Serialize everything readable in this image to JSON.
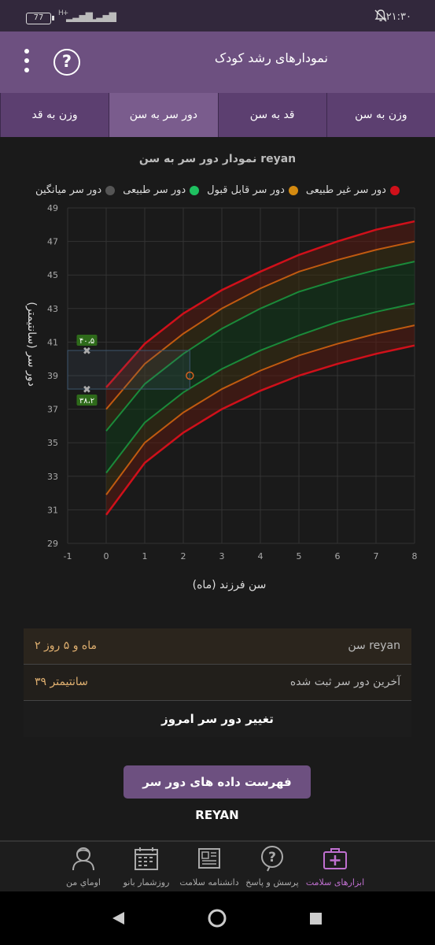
{
  "status_bar": {
    "time": "۲۱:۳۰",
    "battery": "77",
    "network": "H+"
  },
  "app_bar": {
    "title": "نمودارهای رشد کودک",
    "help_icon": "help-icon",
    "menu_icon": "more-vert-icon"
  },
  "tabs": [
    {
      "label": "وزن به سن",
      "active": false
    },
    {
      "label": "قد به سن",
      "active": false
    },
    {
      "label": "دور سر به سن",
      "active": true
    },
    {
      "label": "وزن به قد",
      "active": false
    }
  ],
  "chart_title": "نمودار دور سر به سن reyan",
  "legend": [
    {
      "label": "دور سر غیر طبیعی",
      "color": "#d0101a"
    },
    {
      "label": "دور سر قابل قبول",
      "color": "#d48a10"
    },
    {
      "label": "دور سر طبیعی",
      "color": "#1ec060"
    },
    {
      "label": "دور سر میانگین",
      "color": "#555555"
    }
  ],
  "chart_data": {
    "type": "line",
    "xlabel": "سن فرزند (ماه)",
    "ylabel": "دور سر (سانتیمتر)",
    "xlim": [
      -1,
      8
    ],
    "ylim": [
      29,
      49
    ],
    "x_ticks": [
      "-1",
      "0",
      "1",
      "2",
      "3",
      "4",
      "5",
      "6",
      "7",
      "8"
    ],
    "y_ticks": [
      "29",
      "31",
      "33",
      "35",
      "37",
      "39",
      "41",
      "43",
      "45",
      "47",
      "49"
    ],
    "x": [
      0,
      1,
      2,
      3,
      4,
      5,
      6,
      7,
      8
    ],
    "series": [
      {
        "name": "دور سر غیر طبیعی",
        "color": "#d0101a",
        "values": [
          30.7,
          33.8,
          35.6,
          37.0,
          38.1,
          39.0,
          39.7,
          40.3,
          40.8
        ]
      },
      {
        "name": "دور سر قابل قبول",
        "color": "#c05a10",
        "values": [
          31.9,
          35.0,
          36.8,
          38.2,
          39.3,
          40.2,
          40.9,
          41.5,
          42.0
        ]
      },
      {
        "name": "دور سر طبیعی",
        "color": "#1a8a3a",
        "values": [
          33.2,
          36.2,
          38.0,
          39.4,
          40.5,
          41.4,
          42.2,
          42.8,
          43.3
        ]
      },
      {
        "name": "دور سر طبیعی",
        "color": "#1a8a3a",
        "values": [
          35.7,
          38.5,
          40.3,
          41.8,
          43.0,
          44.0,
          44.7,
          45.3,
          45.8
        ]
      },
      {
        "name": "دور سر قابل قبول",
        "color": "#c05a10",
        "values": [
          37.0,
          39.7,
          41.5,
          43.0,
          44.2,
          45.2,
          45.9,
          46.5,
          47.0
        ]
      },
      {
        "name": "دور سر غیر طبیعی",
        "color": "#d0101a",
        "values": [
          38.3,
          40.9,
          42.7,
          44.1,
          45.2,
          46.2,
          47.0,
          47.7,
          48.2
        ]
      }
    ],
    "measurement": {
      "x": 2.17,
      "y": 39.0
    },
    "range_box": {
      "x": [
        -1,
        2.17
      ],
      "y": [
        38.2,
        40.5
      ]
    },
    "range_labels": [
      {
        "text": "۴۰،۵",
        "x": -0.5,
        "y": 40.5
      },
      {
        "text": "۳۸،۲",
        "x": -0.5,
        "y": 38.2
      }
    ]
  },
  "info": {
    "age_label": "سن reyan",
    "age_value": "۲ ماه و ۵ روز",
    "last_label": "آخرین دور سر ثبت شده",
    "last_value": "۳۹ سانتیمتر",
    "change_button": "تغییر دور سر امروز"
  },
  "list_button": "فهرست داده های دور سر REYAN",
  "bottom_nav": [
    {
      "label": "ابزارهای سلامت",
      "icon": "medical-kit-icon",
      "active": true
    },
    {
      "label": "پرسش و پاسخ",
      "icon": "question-icon",
      "active": false
    },
    {
      "label": "دانشنامه سلامت",
      "icon": "newspaper-icon",
      "active": false
    },
    {
      "label": "روزشمار بانو",
      "icon": "calendar-icon",
      "active": false
    },
    {
      "label": "اوماي من",
      "icon": "profile-icon",
      "active": false
    }
  ]
}
